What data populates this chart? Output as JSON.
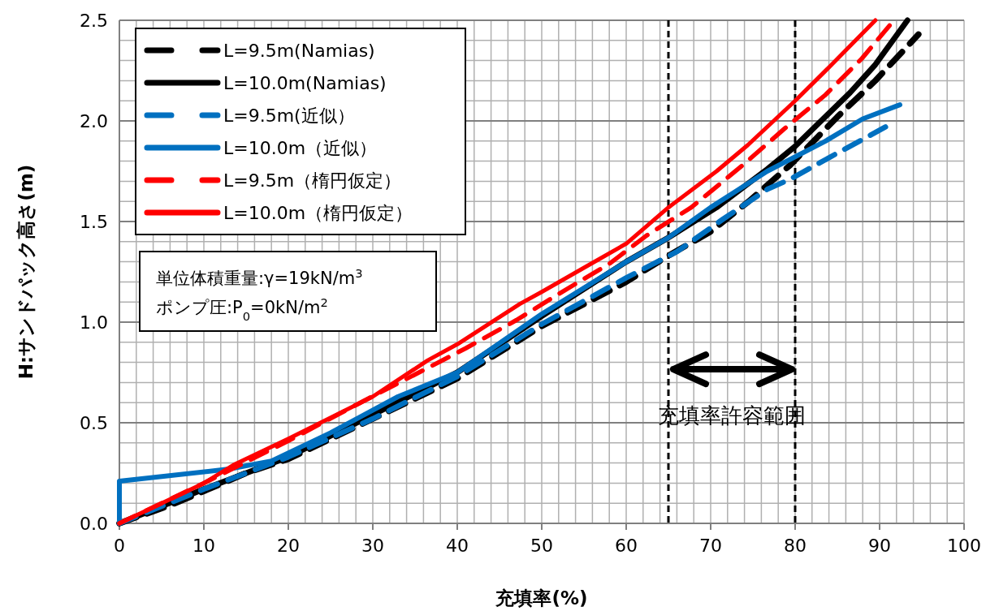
{
  "chart_data": {
    "type": "line",
    "xlabel": "充填率(%)",
    "ylabel": "H:サンドパック高さ(m)",
    "xlim": [
      0,
      100
    ],
    "ylim": [
      0,
      2.5
    ],
    "xticks": [
      0,
      10,
      20,
      30,
      40,
      50,
      60,
      70,
      80,
      90,
      100
    ],
    "yticks": [
      {
        "value": 0,
        "label": "0.0"
      },
      {
        "value": 0.5,
        "label": "0.5"
      },
      {
        "value": 1,
        "label": "1.0"
      },
      {
        "value": 1.5,
        "label": "1.5"
      },
      {
        "value": 2,
        "label": "2.0"
      },
      {
        "value": 2.5,
        "label": "2.5"
      }
    ],
    "grid": true,
    "legend": "top left",
    "marker": "none",
    "series": [
      {
        "name": "L=9.5m(Namias)",
        "color": "#000000",
        "line_style": "dashed",
        "x": [
          0,
          6,
          10,
          15,
          20,
          30,
          40,
          50,
          60,
          65,
          70,
          74.5,
          79.4,
          85,
          89.5,
          94.6
        ],
        "values": [
          0,
          0.09,
          0.16,
          0.25,
          0.32,
          0.52,
          0.72,
          0.98,
          1.2,
          1.33,
          1.45,
          1.6,
          1.78,
          2.02,
          2.2,
          2.43
        ]
      },
      {
        "name": "L=10.0m(Namias)",
        "color": "#000000",
        "line_style": "solid",
        "x": [
          0,
          10,
          20,
          30,
          40,
          50,
          60,
          65,
          70.7,
          76.7,
          79.9,
          86.5,
          89.5,
          93.3
        ],
        "values": [
          0,
          0.17,
          0.33,
          0.54,
          0.75,
          1.03,
          1.3,
          1.42,
          1.57,
          1.76,
          1.87,
          2.14,
          2.28,
          2.5
        ]
      },
      {
        "name": "L=9.5m(近似）",
        "color": "#0070c0",
        "line_style": "dashed",
        "x": [
          0,
          10,
          20,
          30,
          40,
          50,
          60,
          66,
          71.4,
          76.7,
          79.4,
          85,
          90.7
        ],
        "values": [
          0,
          0.17,
          0.33,
          0.52,
          0.73,
          0.99,
          1.22,
          1.35,
          1.51,
          1.66,
          1.71,
          1.84,
          1.97
        ]
      },
      {
        "name": "L=10.0m（近似）",
        "color": "#0070c0",
        "line_style": "solid",
        "x": [
          0,
          0,
          13,
          18,
          25,
          33,
          40,
          50,
          60,
          65,
          70,
          76.7,
          83.6,
          88,
          92.4
        ],
        "values": [
          0,
          0.21,
          0.27,
          0.31,
          0.45,
          0.63,
          0.75,
          1.04,
          1.3,
          1.42,
          1.57,
          1.75,
          1.9,
          2.01,
          2.08
        ]
      },
      {
        "name": "L=9.5m（楕円仮定）",
        "color": "#ff0000",
        "line_style": "dashed",
        "x": [
          0,
          10,
          20,
          29,
          41,
          47,
          52,
          58,
          62.4,
          67.7,
          73.8,
          78.7,
          83.6,
          87.9,
          91.5
        ],
        "values": [
          0,
          0.2,
          0.41,
          0.61,
          0.87,
          1.01,
          1.14,
          1.29,
          1.43,
          1.57,
          1.78,
          1.96,
          2.13,
          2.31,
          2.49
        ]
      },
      {
        "name": "L=10.0m（楕円仮定）",
        "color": "#ff0000",
        "line_style": "solid",
        "x": [
          0,
          5,
          10,
          13.5,
          20,
          30,
          36.5,
          40,
          47.4,
          50,
          55,
          60,
          65,
          70.7,
          74.4,
          80,
          84.1,
          89.5
        ],
        "values": [
          0,
          0.1,
          0.2,
          0.29,
          0.42,
          0.63,
          0.81,
          0.89,
          1.09,
          1.15,
          1.27,
          1.39,
          1.57,
          1.75,
          1.88,
          2.1,
          2.27,
          2.5
        ]
      }
    ],
    "ref_lines": [
      {
        "axis": "x",
        "value": 65,
        "color": "#000000",
        "line_style": "dashed"
      },
      {
        "axis": "x",
        "value": 80,
        "color": "#000000",
        "line_style": "dashed"
      }
    ],
    "annotations": [
      "単位体積重量:γ=19kN/m$^{3}$",
      "ポンプ圧:P$_{0}$=0kN/m$^{2}$",
      "充填率許容範囲"
    ]
  }
}
